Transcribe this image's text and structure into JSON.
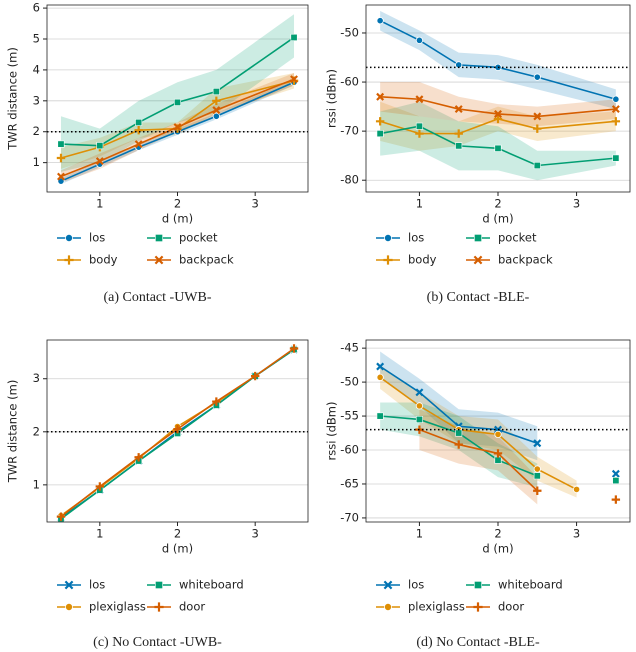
{
  "chart_data": [
    {
      "type": "line",
      "caption": "(a) Contact -UWB-",
      "xlabel": "d (m)",
      "ylabel": "TWR distance (m)",
      "x": [
        0.5,
        1,
        1.5,
        2,
        2.5,
        3.5
      ],
      "xlim": [
        0.32,
        3.68
      ],
      "xticks": [
        1,
        2,
        3
      ],
      "ylim": [
        0.05,
        6.1
      ],
      "yticks": [
        1,
        2,
        3,
        4,
        5,
        6
      ],
      "grid": true,
      "hline": 2,
      "series": [
        {
          "name": "los",
          "color": "#0173b2",
          "marker": "circle",
          "values": [
            0.4,
            0.95,
            1.5,
            2.0,
            2.5,
            3.6
          ],
          "lower": [
            0.3,
            0.85,
            1.4,
            1.9,
            2.4,
            3.5
          ],
          "upper": [
            0.5,
            1.05,
            1.6,
            2.1,
            2.6,
            3.7
          ]
        },
        {
          "name": "body",
          "color": "#de8f05",
          "marker": "plus",
          "values": [
            1.15,
            1.5,
            2.05,
            2.1,
            3.0,
            3.65
          ],
          "lower": [
            0.8,
            1.2,
            1.8,
            1.9,
            2.6,
            3.4
          ],
          "upper": [
            1.5,
            1.8,
            2.3,
            2.3,
            3.4,
            3.9
          ]
        },
        {
          "name": "pocket",
          "color": "#029e73",
          "marker": "square",
          "values": [
            1.6,
            1.55,
            2.3,
            2.95,
            3.3,
            5.05
          ],
          "lower": [
            0.7,
            1.0,
            1.7,
            2.3,
            2.6,
            4.4
          ],
          "upper": [
            2.5,
            2.1,
            3.0,
            3.6,
            4.0,
            5.8
          ]
        },
        {
          "name": "backpack",
          "color": "#d55e00",
          "marker": "x",
          "values": [
            0.55,
            1.05,
            1.6,
            2.15,
            2.7,
            3.7
          ],
          "lower": [
            0.35,
            0.8,
            1.4,
            2.0,
            2.5,
            3.5
          ],
          "upper": [
            0.75,
            1.3,
            1.8,
            2.3,
            2.9,
            3.9
          ]
        }
      ]
    },
    {
      "type": "line",
      "caption": "(b) Contact -BLE-",
      "xlabel": "d (m)",
      "ylabel": "rssi (dBm)",
      "x": [
        0.5,
        1,
        1.5,
        2,
        2.5,
        3.5
      ],
      "xlim": [
        0.32,
        3.68
      ],
      "xticks": [
        1,
        2,
        3
      ],
      "ylim": [
        -82.4,
        -44.3
      ],
      "yticks": [
        -80,
        -70,
        -60,
        -50
      ],
      "grid": true,
      "hline": -57,
      "series": [
        {
          "name": "los",
          "color": "#0173b2",
          "marker": "circle",
          "values": [
            -47.5,
            -51.5,
            -56.5,
            -57,
            -59,
            -63.5
          ],
          "lower": [
            -49.5,
            -53.5,
            -59,
            -59.5,
            -61.5,
            -65.5
          ],
          "upper": [
            -45.5,
            -49.5,
            -54,
            -54.5,
            -56.5,
            -61.5
          ]
        },
        {
          "name": "body",
          "color": "#de8f05",
          "marker": "plus",
          "values": [
            -68,
            -70.5,
            -70.5,
            -67.5,
            -69.5,
            -68
          ],
          "lower": [
            -72,
            -74,
            -73,
            -70,
            -72,
            -70
          ],
          "upper": [
            -64,
            -67,
            -68,
            -65,
            -67,
            -66
          ]
        },
        {
          "name": "pocket",
          "color": "#029e73",
          "marker": "square",
          "values": [
            -70.5,
            -69,
            -73,
            -73.5,
            -77,
            -75.5
          ],
          "lower": [
            -75,
            -74,
            -78,
            -78,
            -80,
            -77
          ],
          "upper": [
            -66,
            -64,
            -68,
            -69,
            -74,
            -74
          ]
        },
        {
          "name": "backpack",
          "color": "#d55e00",
          "marker": "x",
          "values": [
            -63,
            -63.5,
            -65.5,
            -66.5,
            -67,
            -65.5
          ],
          "lower": [
            -66,
            -67,
            -68,
            -68.5,
            -69,
            -67.5
          ],
          "upper": [
            -60,
            -60,
            -63,
            -64.5,
            -65,
            -63.5
          ]
        }
      ]
    },
    {
      "type": "line",
      "caption": "(c) No Contact -UWB-",
      "xlabel": "d (m)",
      "ylabel": "TWR distance (m)",
      "x": [
        0.5,
        1,
        1.5,
        2,
        2.5,
        3,
        3.5
      ],
      "xlim": [
        0.32,
        3.68
      ],
      "xticks": [
        1,
        2,
        3
      ],
      "ylim": [
        0.3,
        3.73
      ],
      "yticks": [
        1,
        2,
        3
      ],
      "grid": true,
      "hline": 2,
      "series": [
        {
          "name": "los",
          "color": "#0173b2",
          "marker": "x",
          "values": [
            0.38,
            0.9,
            1.45,
            2.0,
            2.5,
            3.05,
            3.55
          ]
        },
        {
          "name": "plexiglass",
          "color": "#de8f05",
          "marker": "circle",
          "values": [
            0.42,
            0.95,
            1.5,
            2.1,
            2.55,
            3.05,
            null
          ]
        },
        {
          "name": "whiteboard",
          "color": "#029e73",
          "marker": "square",
          "values": [
            0.36,
            0.9,
            1.45,
            1.97,
            2.5,
            3.05,
            3.55
          ]
        },
        {
          "name": "door",
          "color": "#d55e00",
          "marker": "plus",
          "values": [
            0.4,
            0.97,
            1.52,
            2.05,
            2.57,
            3.05,
            3.57
          ]
        }
      ]
    },
    {
      "type": "line",
      "caption": "(d) No Contact -BLE-",
      "xlabel": "d (m)",
      "ylabel": "rssi (dBm)",
      "x": [
        0.5,
        1,
        1.5,
        2,
        2.5,
        3,
        3.5
      ],
      "xlim": [
        0.32,
        3.68
      ],
      "xticks": [
        1,
        2,
        3
      ],
      "ylim": [
        -70.6,
        -43.8
      ],
      "yticks": [
        -70,
        -65,
        -60,
        -55,
        -50,
        -45
      ],
      "grid": true,
      "hline": -57,
      "series": [
        {
          "name": "los",
          "color": "#0173b2",
          "marker": "x",
          "values": [
            -47.7,
            -51.5,
            -56.5,
            -57,
            -59,
            null,
            -63.5
          ],
          "lower": [
            -49.5,
            -53.5,
            -59,
            -59.5,
            -61.5,
            null,
            -65.5
          ],
          "upper": [
            -45.5,
            -49.5,
            -54,
            -54.5,
            -56.5,
            null,
            -61.5
          ]
        },
        {
          "name": "plexiglass",
          "color": "#de8f05",
          "marker": "circle",
          "values": [
            -49.3,
            -53.5,
            -57,
            -57.7,
            -62.8,
            -65.8,
            null
          ],
          "lower": [
            -51,
            -55.5,
            -59,
            -60,
            -64.5,
            -67,
            null
          ],
          "upper": [
            -47.5,
            -51.5,
            -55,
            -55.5,
            -61,
            -64.5,
            null
          ]
        },
        {
          "name": "whiteboard",
          "color": "#029e73",
          "marker": "square",
          "values": [
            -55,
            -55.5,
            -57.5,
            -61.5,
            -63.8,
            null,
            -64.5
          ],
          "lower": [
            -57,
            -58,
            -60,
            -64,
            -65.5,
            null,
            -65.5
          ],
          "upper": [
            -53,
            -53,
            -55,
            -59,
            -62,
            null,
            -63.5
          ]
        },
        {
          "name": "door",
          "color": "#d55e00",
          "marker": "plus",
          "values": [
            null,
            -57,
            -59.2,
            -60.5,
            -66,
            null,
            -67.3
          ],
          "lower": [
            null,
            -60,
            -62,
            -63,
            -68,
            null,
            -68
          ],
          "upper": [
            null,
            -54,
            -56.5,
            -58,
            -64,
            null,
            -66.5
          ]
        }
      ]
    }
  ]
}
